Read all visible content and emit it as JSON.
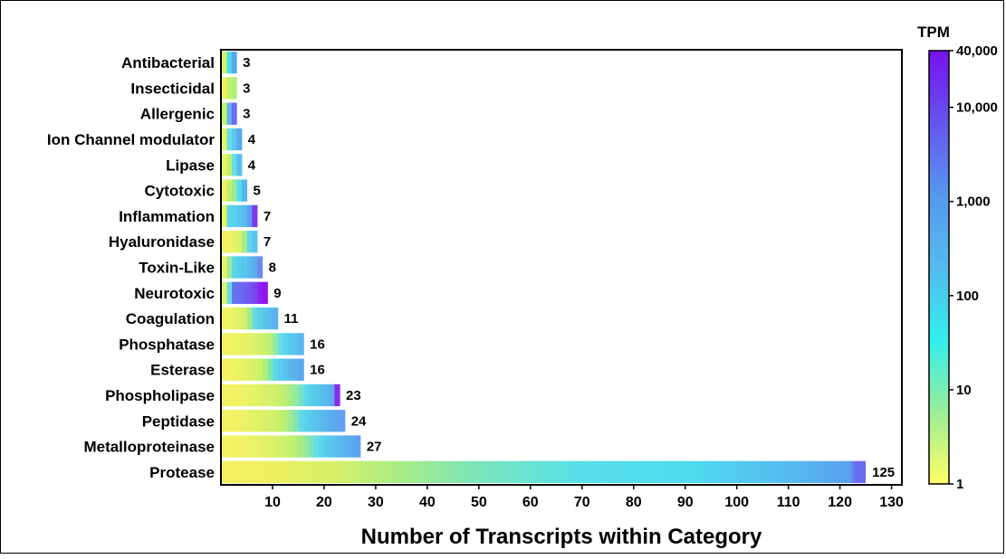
{
  "chart_data": {
    "type": "bar",
    "orientation": "horizontal",
    "categories": [
      "Antibacterial",
      "Insecticidal",
      "Allergenic",
      "Ion Channel modulator",
      "Lipase",
      "Cytotoxic",
      "Inflammation",
      "Hyaluronidase",
      "Toxin-Like",
      "Neurotoxic",
      "Coagulation",
      "Phosphatase",
      "Esterase",
      "Phospholipase",
      "Peptidase",
      "Metalloproteinase",
      "Protease"
    ],
    "values": [
      3,
      3,
      3,
      4,
      4,
      5,
      7,
      7,
      8,
      9,
      11,
      16,
      16,
      23,
      24,
      27,
      125
    ],
    "value_labels": [
      "3",
      "3",
      "3",
      "4",
      "4",
      "5",
      "7",
      "7",
      "8",
      "9",
      "11",
      "16",
      "16",
      "23",
      "24",
      "27",
      "125"
    ],
    "xlabel": "Number of Transcripts within Category",
    "xlim": [
      0,
      132
    ],
    "xticks": [
      10,
      20,
      30,
      40,
      50,
      60,
      70,
      80,
      90,
      100,
      110,
      120,
      130
    ],
    "xtick_labels": [
      "10",
      "20",
      "30",
      "40",
      "50",
      "60",
      "70",
      "80",
      "90",
      "100",
      "110",
      "120",
      "130"
    ],
    "color_scale": {
      "title": "TPM",
      "scale": "log",
      "range": [
        1,
        40000
      ],
      "ticks": [
        1,
        10,
        100,
        1000,
        10000,
        40000
      ],
      "tick_labels": [
        "1",
        "10",
        "100",
        "1,000",
        "10,000",
        "40,000"
      ],
      "colors": [
        "#ffff66",
        "#99ee99",
        "#33eeee",
        "#55bbee",
        "#5599ee",
        "#6655ee",
        "#7711ee"
      ]
    },
    "series_colors": [
      [
        "#d4f56a",
        "#4fdcea",
        "#5aa9ef"
      ],
      [
        "#eef060",
        "#c8f06a",
        "#b0f07a"
      ],
      [
        "#c4f468",
        "#5fb4ef",
        "#6a6bef"
      ],
      [
        "#e6f466",
        "#66e0e8",
        "#5fc6ee",
        "#55aaee"
      ],
      [
        "#e4f466",
        "#c6f06a",
        "#66dfe8",
        "#58bdee"
      ],
      [
        "#eff364",
        "#c6f06a",
        "#99ea98",
        "#54dce8",
        "#55b5ee"
      ],
      [
        "#e7f464",
        "#58d8ea",
        "#58cfec",
        "#5ac4ec",
        "#5bbbee",
        "#5a9eef",
        "#7a3bef"
      ],
      [
        "#f2f264",
        "#eef264",
        "#e8f266",
        "#d6f268",
        "#a9ec88",
        "#62d6ec",
        "#58c6ee"
      ],
      [
        "#eaf264",
        "#9be99a",
        "#5ad6ea",
        "#57cdec",
        "#58c5ec",
        "#58bbee",
        "#5cabef",
        "#6a8cef"
      ],
      [
        "#d8f46a",
        "#6bd8e6",
        "#6275ef",
        "#6a6cef",
        "#7060ef",
        "#7455ef",
        "#7a47ef",
        "#8c22ef",
        "#9512ee"
      ],
      [
        "#f2f264",
        "#eef264",
        "#e7f266",
        "#dcf068",
        "#d2f06a",
        "#a0ea90",
        "#66d8e6",
        "#5ccfeb",
        "#59c6ec",
        "#5abdee",
        "#5ab2ee"
      ],
      [
        "#f4f262",
        "#f1f264",
        "#eef264",
        "#ebf264",
        "#e7f266",
        "#e2f266",
        "#dcf068",
        "#d4f06a",
        "#c8f06a",
        "#b5ee7a",
        "#8fe9a0",
        "#66dde6",
        "#5bd3ea",
        "#57caec",
        "#5ac1ee",
        "#5bb7ee"
      ],
      [
        "#f4f262",
        "#f1f262",
        "#eef264",
        "#eaf264",
        "#e4f266",
        "#dcf068",
        "#d4f06a",
        "#c8f06a",
        "#b0ee7a",
        "#80e8a8",
        "#5ad8ea",
        "#58cdec",
        "#58c3ee",
        "#5ab8ee",
        "#5bafee",
        "#5ca7ef"
      ],
      [
        "#f5f262",
        "#f3f262",
        "#f1f262",
        "#eef264",
        "#ebf264",
        "#e8f266",
        "#e4f266",
        "#e0f066",
        "#dbf068",
        "#d5f06a",
        "#cef06a",
        "#c4f06a",
        "#b8ee78",
        "#a4ec88",
        "#8fe9a0",
        "#75e2c8",
        "#5ed8e8",
        "#58cfeb",
        "#57c7ec",
        "#59bfee",
        "#5ab7ee",
        "#5eaaef",
        "#8a2bef"
      ],
      [
        "#f5f262",
        "#f3f262",
        "#f0f262",
        "#eef264",
        "#ebf264",
        "#e8f266",
        "#e4f266",
        "#e0f066",
        "#dbf068",
        "#d5f06a",
        "#cef06a",
        "#c4f06a",
        "#b4ee7a",
        "#9cea92",
        "#80e6b4",
        "#62d8e8",
        "#5ad0ea",
        "#58c8ec",
        "#58c1ee",
        "#5abaee",
        "#5bb3ee",
        "#5dabef",
        "#5fa4ef",
        "#61a0ef"
      ],
      [
        "#f5f262",
        "#f4f262",
        "#f2f262",
        "#f0f262",
        "#eef264",
        "#ebf264",
        "#e8f266",
        "#e5f266",
        "#e1f066",
        "#ddf068",
        "#d8f068",
        "#d2f06a",
        "#cbf06a",
        "#c2f06a",
        "#b6ee78",
        "#a6ec86",
        "#92e99e",
        "#7ce4bc",
        "#66dce4",
        "#5cd4ea",
        "#58ccec",
        "#58c5ec",
        "#59beee",
        "#5ab7ee",
        "#5bb0ee",
        "#5da9ef",
        "#5fa2ef"
      ]
    ],
    "protease_gradient": [
      {
        "offset": 0,
        "color": "#f4f060"
      },
      {
        "offset": 0.08,
        "color": "#eef060"
      },
      {
        "offset": 0.18,
        "color": "#d4f06a"
      },
      {
        "offset": 0.28,
        "color": "#a8ec88"
      },
      {
        "offset": 0.38,
        "color": "#80e6b4"
      },
      {
        "offset": 0.55,
        "color": "#58e0e8"
      },
      {
        "offset": 0.72,
        "color": "#4fdcef"
      },
      {
        "offset": 0.88,
        "color": "#55bbef"
      },
      {
        "offset": 0.975,
        "color": "#5aa0ef"
      },
      {
        "offset": 0.985,
        "color": "#6a6aef"
      },
      {
        "offset": 1,
        "color": "#6a6aef"
      }
    ]
  }
}
